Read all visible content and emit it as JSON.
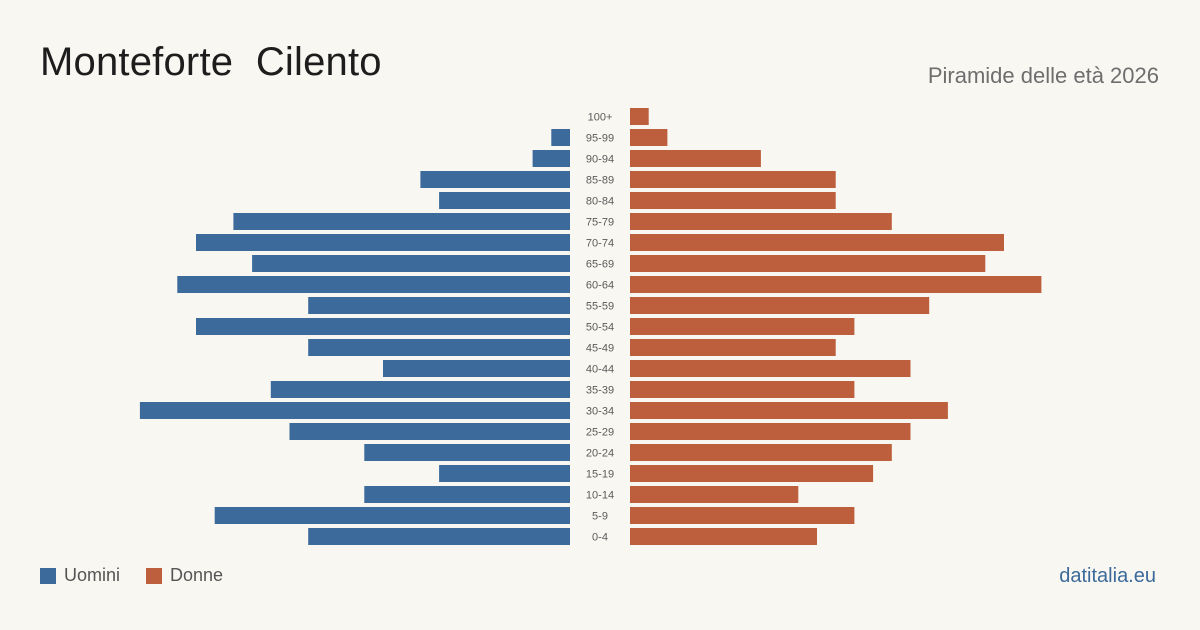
{
  "title": "Monteforte  Cilento",
  "subtitle": "Piramide delle età 2026",
  "source": "datitalia.eu",
  "colors": {
    "male": "#3b6a9b",
    "female": "#bd5f3c",
    "background": "#f9f7f2"
  },
  "legend": [
    {
      "label": "Uomini",
      "color": "#3b6a9b"
    },
    {
      "label": "Donne",
      "color": "#bd5f3c"
    }
  ],
  "chart_data": {
    "type": "bar",
    "orientation": "horizontal-butterfly",
    "categories": [
      "100+",
      "95-99",
      "90-94",
      "85-89",
      "80-84",
      "75-79",
      "70-74",
      "65-69",
      "60-64",
      "55-59",
      "50-54",
      "45-49",
      "40-44",
      "35-39",
      "30-34",
      "25-29",
      "20-24",
      "15-19",
      "10-14",
      "5-9",
      "0-4"
    ],
    "series": [
      {
        "name": "Uomini",
        "values": [
          0,
          1,
          2,
          8,
          7,
          18,
          20,
          17,
          21,
          14,
          20,
          14,
          10,
          16,
          23,
          15,
          11,
          7,
          11,
          19,
          14
        ]
      },
      {
        "name": "Donne",
        "values": [
          1,
          2,
          7,
          11,
          11,
          14,
          20,
          19,
          22,
          16,
          12,
          11,
          15,
          12,
          17,
          15,
          14,
          13,
          9,
          12,
          10
        ]
      }
    ],
    "grid": false,
    "legend_position": "bottom-left"
  }
}
